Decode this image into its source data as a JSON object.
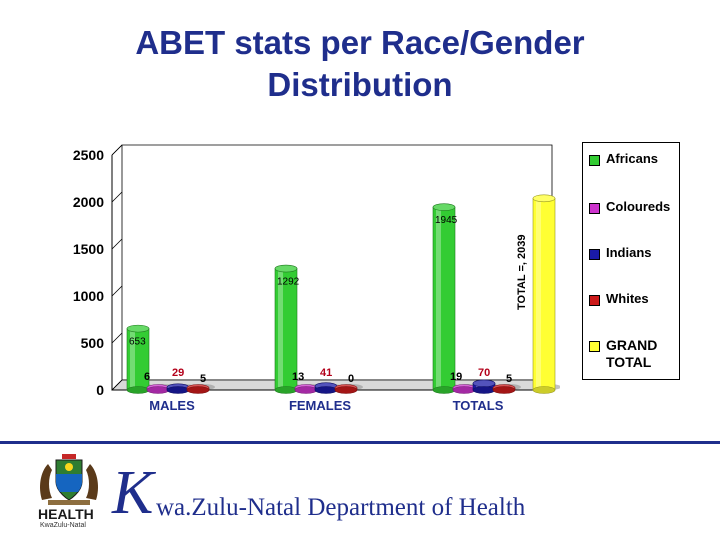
{
  "title": {
    "line1": "ABET stats per Race/Gender",
    "line2": "Distribution"
  },
  "chart_data": {
    "type": "bar",
    "title": "ABET stats per Race/Gender Distribution",
    "categories": [
      "MALES",
      "FEMALES",
      "TOTALS"
    ],
    "series": [
      {
        "name": "Africans",
        "color": "#33cc33",
        "values": [
          653,
          1292,
          1945
        ],
        "labels": [
          "653",
          "1292",
          "1945"
        ]
      },
      {
        "name": "Coloureds",
        "color": "#cc33cc",
        "values": [
          6,
          13,
          19
        ],
        "labels": [
          "6",
          "13",
          "19"
        ]
      },
      {
        "name": "Indians",
        "color": "#1a1aa6",
        "values": [
          29,
          41,
          70
        ],
        "labels": [
          "29",
          "41",
          "70"
        ]
      },
      {
        "name": "Whites",
        "color": "#cc1a1a",
        "values": [
          5,
          0,
          5
        ],
        "labels": [
          "5",
          "0",
          "5"
        ]
      },
      {
        "name": "GRAND TOTAL",
        "color": "#ffff33",
        "values": [
          null,
          null,
          2039
        ],
        "labels": [
          "",
          "",
          ""
        ]
      }
    ],
    "yticks": [
      0,
      500,
      1000,
      1500,
      2000,
      2500
    ],
    "ylim": [
      0,
      2500
    ],
    "xlabel": "",
    "ylabel": "",
    "annotation": "TOTAL =, 2039",
    "legend": [
      "Africans",
      "Coloureds",
      "Indians",
      "Whites",
      "GRAND TOTAL"
    ],
    "legend_position": "right"
  },
  "footer": {
    "department_initial": "K",
    "department_rest": "wa.Zulu-Natal Department of Health",
    "logo_health": "HEALTH",
    "logo_province": "KwaZulu-Natal"
  }
}
